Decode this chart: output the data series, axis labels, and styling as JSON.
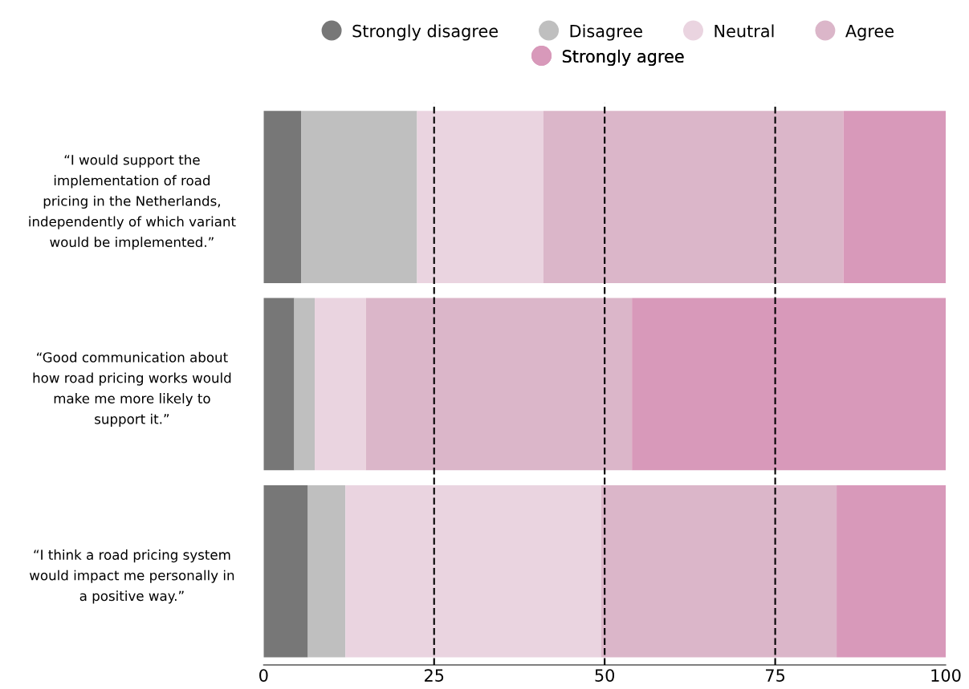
{
  "chart_data": {
    "type": "bar",
    "orientation": "horizontal",
    "stacked": true,
    "categories": [
      "“I would support the\nimplementation of road\npricing in the Netherlands,\nindependently of which variant\nwould be implemented.”",
      "“Good communication about\nhow road pricing works would\nmake me more likely to\nsupport it.”",
      "“I think a road pricing system\nwould impact me personally in\na positive way.”"
    ],
    "series": [
      {
        "name": "Strongly disagree",
        "color": "#777777",
        "values": [
          5.5,
          4.5,
          6.5
        ]
      },
      {
        "name": "Disagree",
        "color": "#bfbfbf",
        "values": [
          17,
          3,
          5.5
        ]
      },
      {
        "name": "Neutral",
        "color": "#ead4e0",
        "values": [
          18.5,
          7.5,
          37.5
        ]
      },
      {
        "name": "Agree",
        "color": "#dbb6c9",
        "values": [
          44,
          39,
          34.5
        ]
      },
      {
        "name": "Strongly agree",
        "color": "#d899ba",
        "values": [
          15,
          46,
          16
        ]
      }
    ],
    "xlim": [
      0,
      100
    ],
    "xticks": [
      0,
      25,
      50,
      75,
      100
    ],
    "ref_lines": [
      {
        "axis": "x",
        "value": 25,
        "line_style": "dashed",
        "color": "#000000"
      },
      {
        "axis": "x",
        "value": 50,
        "line_style": "dashed",
        "color": "#000000"
      },
      {
        "axis": "x",
        "value": 75,
        "line_style": "dashed",
        "color": "#000000"
      }
    ],
    "legend": "top",
    "grid": false
  }
}
